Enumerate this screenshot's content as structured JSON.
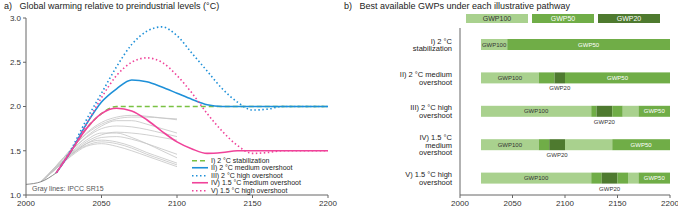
{
  "chart_data": [
    {
      "type": "line",
      "title": "a)   Global warming relative to preindustrial levels (°C)",
      "x": [
        2000,
        2010,
        2020,
        2030,
        2040,
        2050,
        2060,
        2070,
        2080,
        2090,
        2100,
        2110,
        2120,
        2130,
        2140,
        2150,
        2160,
        2170,
        2180,
        2190,
        2200
      ],
      "xlim": [
        2000,
        2200
      ],
      "xticks": [
        2000,
        2050,
        2100,
        2150,
        2200
      ],
      "ylim": [
        1.0,
        3.0
      ],
      "yticks": [
        {
          "value": 1.0,
          "label": "1.0"
        },
        {
          "value": 1.5,
          "label": "1.5"
        },
        {
          "value": 2.0,
          "label": "2.0"
        },
        {
          "value": 2.5,
          "label": "2.5"
        },
        {
          "value": 3.0,
          "label": "3.0"
        }
      ],
      "grid": false,
      "legend": "lower right",
      "annotations": [
        "Gray lines: IPCC SR15"
      ],
      "series": [
        {
          "color": "#c4c4c4",
          "line_style": "solid",
          "values": [
            null,
            1.15,
            1.3,
            1.45,
            1.58,
            1.65,
            1.66,
            1.63,
            1.58,
            1.52,
            1.46,
            null,
            null,
            null,
            null,
            null,
            null,
            null,
            null,
            null,
            null
          ]
        },
        {
          "color": "#c4c4c4",
          "line_style": "solid",
          "values": [
            null,
            1.15,
            1.32,
            1.5,
            1.65,
            1.75,
            1.78,
            1.77,
            1.74,
            1.7,
            1.66,
            null,
            null,
            null,
            null,
            null,
            null,
            null,
            null,
            null,
            null
          ]
        },
        {
          "color": "#c4c4c4",
          "line_style": "solid",
          "values": [
            null,
            1.15,
            1.3,
            1.48,
            1.62,
            1.7,
            1.7,
            1.65,
            1.58,
            1.5,
            1.42,
            null,
            null,
            null,
            null,
            null,
            null,
            null,
            null,
            null,
            null
          ]
        },
        {
          "color": "#c4c4c4",
          "line_style": "solid",
          "values": [
            null,
            1.15,
            1.33,
            1.52,
            1.7,
            1.82,
            1.88,
            1.9,
            1.89,
            1.87,
            1.85,
            null,
            null,
            null,
            null,
            null,
            null,
            null,
            null,
            null,
            null
          ]
        },
        {
          "color": "#c4c4c4",
          "line_style": "solid",
          "values": [
            null,
            1.15,
            1.3,
            1.44,
            1.55,
            1.58,
            1.55,
            1.5,
            1.44,
            1.38,
            1.32,
            null,
            null,
            null,
            null,
            null,
            null,
            null,
            null,
            null,
            null
          ]
        },
        {
          "color": "#c4c4c4",
          "line_style": "solid",
          "values": [
            null,
            1.15,
            1.31,
            1.47,
            1.6,
            1.68,
            1.71,
            1.7,
            1.68,
            1.65,
            1.62,
            null,
            null,
            null,
            null,
            null,
            null,
            null,
            null,
            null,
            null
          ]
        },
        {
          "color": "#c4c4c4",
          "line_style": "solid",
          "values": [
            null,
            1.15,
            1.32,
            1.5,
            1.66,
            1.78,
            1.84,
            1.84,
            1.8,
            1.75,
            1.7,
            null,
            null,
            null,
            null,
            null,
            null,
            null,
            null,
            null,
            null
          ]
        },
        {
          "color": "#c4c4c4",
          "line_style": "solid",
          "values": [
            null,
            1.15,
            1.3,
            1.46,
            1.58,
            1.62,
            1.6,
            1.55,
            1.48,
            1.42,
            1.36,
            null,
            null,
            null,
            null,
            null,
            null,
            null,
            null,
            null,
            null
          ]
        },
        {
          "color": "#c4c4c4",
          "line_style": "solid",
          "values": [
            null,
            1.15,
            1.33,
            1.52,
            1.69,
            1.8,
            1.86,
            1.88,
            1.88,
            1.87,
            1.86,
            null,
            null,
            null,
            null,
            null,
            null,
            null,
            null,
            null,
            null
          ]
        },
        {
          "color": "#c4c4c4",
          "line_style": "solid",
          "values": [
            null,
            1.15,
            1.31,
            1.46,
            1.56,
            1.6,
            1.58,
            1.53,
            1.46,
            1.4,
            1.34,
            null,
            null,
            null,
            null,
            null,
            null,
            null,
            null,
            null,
            null
          ]
        },
        {
          "color": "#6f6f6f",
          "line_style": "solid",
          "values": [
            1.12,
            1.15,
            1.25,
            null,
            null,
            null,
            null,
            null,
            null,
            null,
            null,
            null,
            null,
            null,
            null,
            null,
            null,
            null,
            null,
            null,
            null
          ]
        },
        {
          "name": "I) 2 °C stabilization",
          "color": "#7ac143",
          "line_style": "dashed",
          "values": [
            null,
            null,
            1.25,
            1.5,
            1.75,
            1.92,
            2.0,
            2.0,
            2.0,
            2.0,
            2.0,
            2.0,
            2.0,
            2.0,
            2.0,
            2.0,
            2.0,
            2.0,
            2.0,
            2.0,
            2.0
          ]
        },
        {
          "name": "II) 2 °C medium overshoot",
          "color": "#1e90d8",
          "line_style": "solid",
          "values": [
            null,
            null,
            1.25,
            1.5,
            1.8,
            2.05,
            2.2,
            2.3,
            2.28,
            2.22,
            2.15,
            2.08,
            2.02,
            2.0,
            2.0,
            2.0,
            2.0,
            2.0,
            2.0,
            2.0,
            2.0
          ]
        },
        {
          "name": "III) 2 °C high overshoot",
          "color": "#1e90d8",
          "line_style": "dotted",
          "values": [
            null,
            null,
            1.25,
            1.52,
            1.85,
            2.15,
            2.45,
            2.7,
            2.85,
            2.9,
            2.8,
            2.6,
            2.4,
            2.2,
            2.05,
            1.96,
            1.97,
            2.0,
            2.0,
            2.0,
            2.0
          ]
        },
        {
          "name": "IV) 1.5 °C medium overshoot",
          "color": "#f0439a",
          "line_style": "solid",
          "values": [
            null,
            null,
            1.25,
            1.5,
            1.75,
            1.92,
            1.98,
            1.95,
            1.85,
            1.72,
            1.6,
            1.52,
            1.47,
            1.48,
            1.5,
            1.5,
            1.5,
            1.5,
            1.5,
            1.5,
            1.5
          ]
        },
        {
          "name": "V) 1.5 °C high overshoot",
          "color": "#f0439a",
          "line_style": "dotted",
          "values": [
            null,
            null,
            1.25,
            1.5,
            1.8,
            2.1,
            2.35,
            2.5,
            2.55,
            2.5,
            2.35,
            2.15,
            1.92,
            1.72,
            1.56,
            1.47,
            1.48,
            1.5,
            1.5,
            1.5,
            1.5
          ]
        }
      ]
    },
    {
      "type": "bar",
      "title": "b)   Best available GWPs under each illustrative pathway",
      "orientation": "horizontal",
      "stacked": true,
      "legend": "top",
      "xlim": [
        2000,
        2200
      ],
      "xticks": [
        2000,
        2050,
        2100,
        2150,
        2200
      ],
      "series": [
        {
          "name": "GWP100",
          "color": "#a9d18e"
        },
        {
          "name": "GWP50",
          "color": "#70ad47"
        },
        {
          "name": "GWP20",
          "color": "#4e7a2f"
        }
      ],
      "categories": [
        "I) 2 °C stabilization",
        "II) 2 °C medium overshoot",
        "III) 2 °C high overshoot",
        "IV) 1.5 °C medium overshoot",
        "V) 1.5 °C high overshoot"
      ],
      "start": [
        2020,
        2020,
        2020,
        2020,
        2020
      ],
      "segments": [
        [
          {
            "type": "GWP100",
            "years": 25,
            "labeled": true
          },
          {
            "type": "GWP50",
            "years": 155,
            "labeled": true
          }
        ],
        [
          {
            "type": "GWP100",
            "years": 55,
            "labeled": true
          },
          {
            "type": "GWP50",
            "years": 15,
            "labeled": false
          },
          {
            "type": "GWP20",
            "years": 10,
            "labeled": true
          },
          {
            "type": "GWP50",
            "years": 100,
            "labeled": true
          }
        ],
        [
          {
            "type": "GWP100",
            "years": 105,
            "labeled": true
          },
          {
            "type": "GWP50",
            "years": 5,
            "labeled": false
          },
          {
            "type": "GWP20",
            "years": 15,
            "labeled": true
          },
          {
            "type": "GWP50",
            "years": 10,
            "labeled": false
          },
          {
            "type": "GWP100",
            "years": 15,
            "labeled": false
          },
          {
            "type": "GWP50",
            "years": 30,
            "labeled": true
          }
        ],
        [
          {
            "type": "GWP100",
            "years": 55,
            "labeled": true
          },
          {
            "type": "GWP50",
            "years": 10,
            "labeled": false
          },
          {
            "type": "GWP20",
            "years": 15,
            "labeled": true
          },
          {
            "type": "GWP100",
            "years": 45,
            "labeled": false
          },
          {
            "type": "GWP50",
            "years": 55,
            "labeled": true
          }
        ],
        [
          {
            "type": "GWP100",
            "years": 105,
            "labeled": true
          },
          {
            "type": "GWP50",
            "years": 10,
            "labeled": false
          },
          {
            "type": "GWP20",
            "years": 15,
            "labeled": true
          },
          {
            "type": "GWP50",
            "years": 10,
            "labeled": false
          },
          {
            "type": "GWP100",
            "years": 10,
            "labeled": false
          },
          {
            "type": "GWP50",
            "years": 30,
            "labeled": true
          }
        ]
      ]
    }
  ]
}
